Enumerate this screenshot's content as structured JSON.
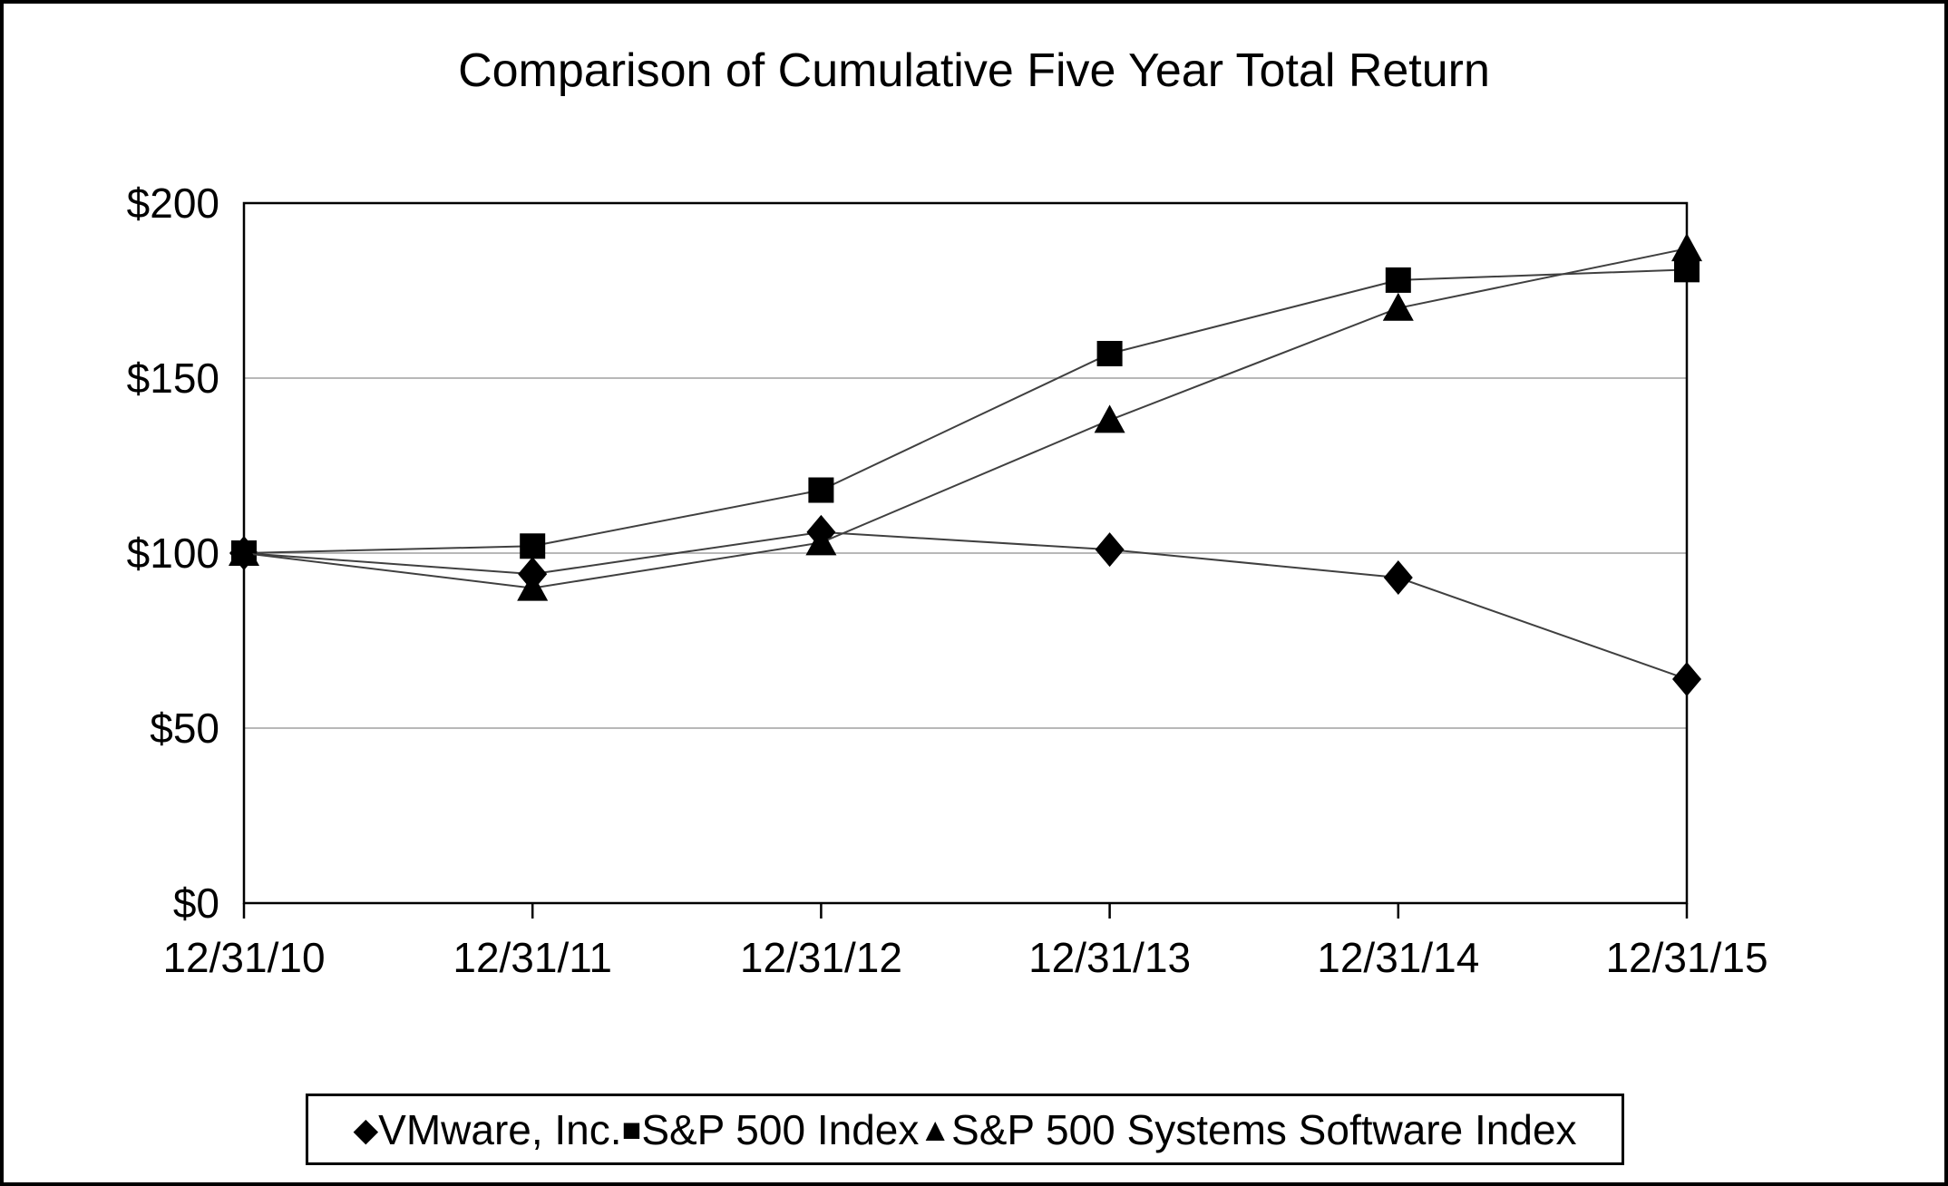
{
  "figure": {
    "title": "Comparison of Cumulative Five Year Total Return",
    "colors": {
      "background": "#ffffff",
      "canvas_border": "#000000",
      "axis_frame": "#000000",
      "gridline": "#a0a0a0",
      "series_line": "#404040",
      "marker": "#000000",
      "text": "#000000",
      "legend_border": "#000000"
    }
  },
  "chart_data": {
    "type": "line",
    "title": "Comparison of Cumulative Five Year Total Return",
    "categories": [
      "12/31/10",
      "12/31/11",
      "12/31/12",
      "12/31/13",
      "12/31/14",
      "12/31/15"
    ],
    "series": [
      {
        "name": "VMware, Inc.",
        "marker": "diamond",
        "marker_glyph": "◆",
        "values": [
          100,
          94,
          106,
          101,
          93,
          64
        ]
      },
      {
        "name": "S&P 500 Index",
        "marker": "square",
        "marker_glyph": "■",
        "values": [
          100,
          102,
          118,
          157,
          178,
          181
        ]
      },
      {
        "name": "S&P 500 Systems Software Index",
        "marker": "triangle",
        "marker_glyph": "▲",
        "values": [
          100,
          90,
          103,
          138,
          170,
          187
        ]
      }
    ],
    "xlabel": "",
    "ylabel": "",
    "ylim": [
      0,
      200
    ],
    "y_ticks": {
      "values": [
        0,
        50,
        100,
        150,
        200
      ],
      "labels": [
        "$0",
        "$50",
        "$100",
        "$150",
        "$200"
      ]
    },
    "grid": "horizontal-only",
    "legend_position": "bottom"
  }
}
